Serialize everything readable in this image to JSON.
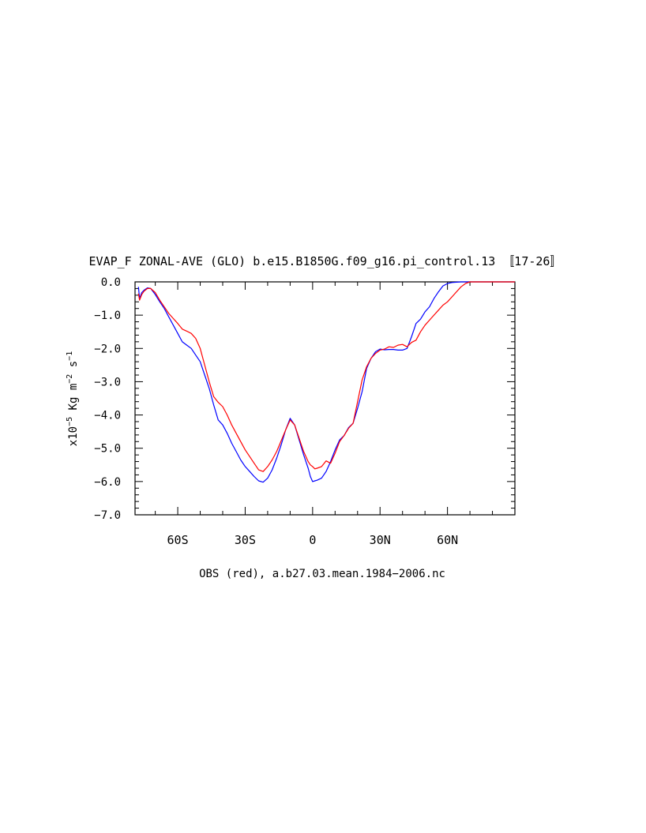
{
  "chart_data": {
    "type": "line",
    "title": "EVAP_F ZONAL-AVE (GLO) b.e15.B1850G.f09_g16.pi_control.13 〚17-26〛",
    "ylabel": {
      "prefix": "x10",
      "exp1": "−5",
      "mid": " Kg m",
      "exp2": "−2",
      "mid2": " s",
      "exp3": "−1"
    },
    "footnote": "OBS (red), a.b27.03.mean.1984−2006.nc",
    "xlim": [
      -79,
      90
    ],
    "ylim": [
      -7.0,
      0.0
    ],
    "x_ticks": [
      {
        "value": -60,
        "label": "60S"
      },
      {
        "value": -30,
        "label": "30S"
      },
      {
        "value": 0,
        "label": "0"
      },
      {
        "value": 30,
        "label": "30N"
      },
      {
        "value": 60,
        "label": "60N"
      }
    ],
    "y_ticks": [
      {
        "value": 0.0,
        "label": "0.0"
      },
      {
        "value": -1.0,
        "label": "−1.0"
      },
      {
        "value": -2.0,
        "label": "−2.0"
      },
      {
        "value": -3.0,
        "label": "−3.0"
      },
      {
        "value": -4.0,
        "label": "−4.0"
      },
      {
        "value": -5.0,
        "label": "−5.0"
      },
      {
        "value": -6.0,
        "label": "−6.0"
      },
      {
        "value": -7.0,
        "label": "−7.0"
      }
    ],
    "colors": {
      "model": "#0000ff",
      "obs": "#ff0000"
    },
    "series": [
      {
        "key": "model",
        "color": "#0000ff",
        "x": [
          -77.5,
          -77,
          -76,
          -75,
          -73.5,
          -72,
          -70,
          -68,
          -66,
          -64,
          -62,
          -60,
          -58,
          -56,
          -54,
          -52,
          -50,
          -48,
          -46,
          -44,
          -42,
          -40,
          -38,
          -36,
          -34,
          -32,
          -30,
          -28,
          -26,
          -24,
          -22,
          -20,
          -18,
          -16,
          -14,
          -12,
          -10,
          -8,
          -6,
          -4,
          -2,
          -1,
          0,
          1,
          2,
          4,
          6,
          8,
          10,
          12,
          14,
          16,
          18,
          20,
          22,
          24,
          26,
          28,
          30,
          32,
          34,
          36,
          38,
          40,
          42,
          44,
          46,
          48,
          50,
          52,
          54,
          56,
          58,
          60,
          62,
          64,
          66,
          68,
          70,
          72,
          74,
          76,
          78,
          80,
          82,
          84,
          86,
          88,
          90
        ],
        "y": [
          -0.15,
          -0.5,
          -0.32,
          -0.25,
          -0.18,
          -0.2,
          -0.38,
          -0.6,
          -0.8,
          -1.05,
          -1.3,
          -1.55,
          -1.8,
          -1.9,
          -2.0,
          -2.2,
          -2.4,
          -2.8,
          -3.2,
          -3.7,
          -4.15,
          -4.3,
          -4.55,
          -4.85,
          -5.1,
          -5.35,
          -5.55,
          -5.7,
          -5.85,
          -5.98,
          -6.02,
          -5.9,
          -5.65,
          -5.3,
          -4.9,
          -4.45,
          -4.1,
          -4.3,
          -4.75,
          -5.2,
          -5.6,
          -5.85,
          -6.0,
          -5.98,
          -5.96,
          -5.9,
          -5.7,
          -5.4,
          -5.05,
          -4.75,
          -4.62,
          -4.38,
          -4.25,
          -3.8,
          -3.3,
          -2.6,
          -2.3,
          -2.1,
          -2.02,
          -2.04,
          -2.03,
          -2.03,
          -2.05,
          -2.05,
          -2.0,
          -1.65,
          -1.25,
          -1.12,
          -0.9,
          -0.75,
          -0.5,
          -0.3,
          -0.12,
          -0.05,
          -0.02,
          -0.01,
          0.0,
          0.0,
          0.0,
          0.0,
          0.0,
          0.0,
          0.0,
          0.0,
          0.0,
          0.0,
          0.0,
          0.0,
          0.0
        ]
      },
      {
        "key": "obs",
        "color": "#ff0000",
        "x": [
          -77.5,
          -77,
          -76,
          -75,
          -73.5,
          -72,
          -70,
          -68,
          -66,
          -64,
          -62,
          -60,
          -58,
          -56,
          -54,
          -52,
          -50,
          -48,
          -46,
          -44,
          -42,
          -40,
          -38,
          -36,
          -34,
          -32,
          -30,
          -28,
          -26,
          -24,
          -22,
          -20,
          -18,
          -16,
          -14,
          -12,
          -10,
          -8,
          -6,
          -4,
          -2,
          -1,
          0,
          1,
          2,
          4,
          6,
          8,
          10,
          12,
          14,
          16,
          18,
          20,
          22,
          24,
          26,
          28,
          30,
          32,
          34,
          36,
          38,
          40,
          42,
          44,
          46,
          48,
          50,
          52,
          54,
          56,
          58,
          60,
          62,
          64,
          66,
          68,
          70,
          72,
          74,
          76,
          78,
          80,
          82,
          84,
          86,
          88,
          90
        ],
        "y": [
          -0.35,
          -0.55,
          -0.38,
          -0.28,
          -0.2,
          -0.2,
          -0.32,
          -0.55,
          -0.75,
          -0.95,
          -1.1,
          -1.25,
          -1.42,
          -1.48,
          -1.55,
          -1.7,
          -2.0,
          -2.5,
          -3.0,
          -3.45,
          -3.62,
          -3.75,
          -4.0,
          -4.3,
          -4.55,
          -4.8,
          -5.05,
          -5.25,
          -5.45,
          -5.65,
          -5.7,
          -5.55,
          -5.35,
          -5.1,
          -4.78,
          -4.45,
          -4.15,
          -4.3,
          -4.7,
          -5.1,
          -5.4,
          -5.5,
          -5.55,
          -5.62,
          -5.6,
          -5.55,
          -5.38,
          -5.45,
          -5.15,
          -4.8,
          -4.62,
          -4.4,
          -4.25,
          -3.6,
          -2.95,
          -2.55,
          -2.3,
          -2.15,
          -2.05,
          -2.02,
          -1.95,
          -1.97,
          -1.9,
          -1.88,
          -1.95,
          -1.82,
          -1.75,
          -1.5,
          -1.3,
          -1.15,
          -1.0,
          -0.85,
          -0.7,
          -0.6,
          -0.45,
          -0.3,
          -0.15,
          -0.05,
          0.0,
          0.0,
          0.0,
          0.0,
          0.0,
          0.0,
          0.0,
          0.0,
          0.0,
          0.0,
          0.0
        ]
      }
    ]
  }
}
